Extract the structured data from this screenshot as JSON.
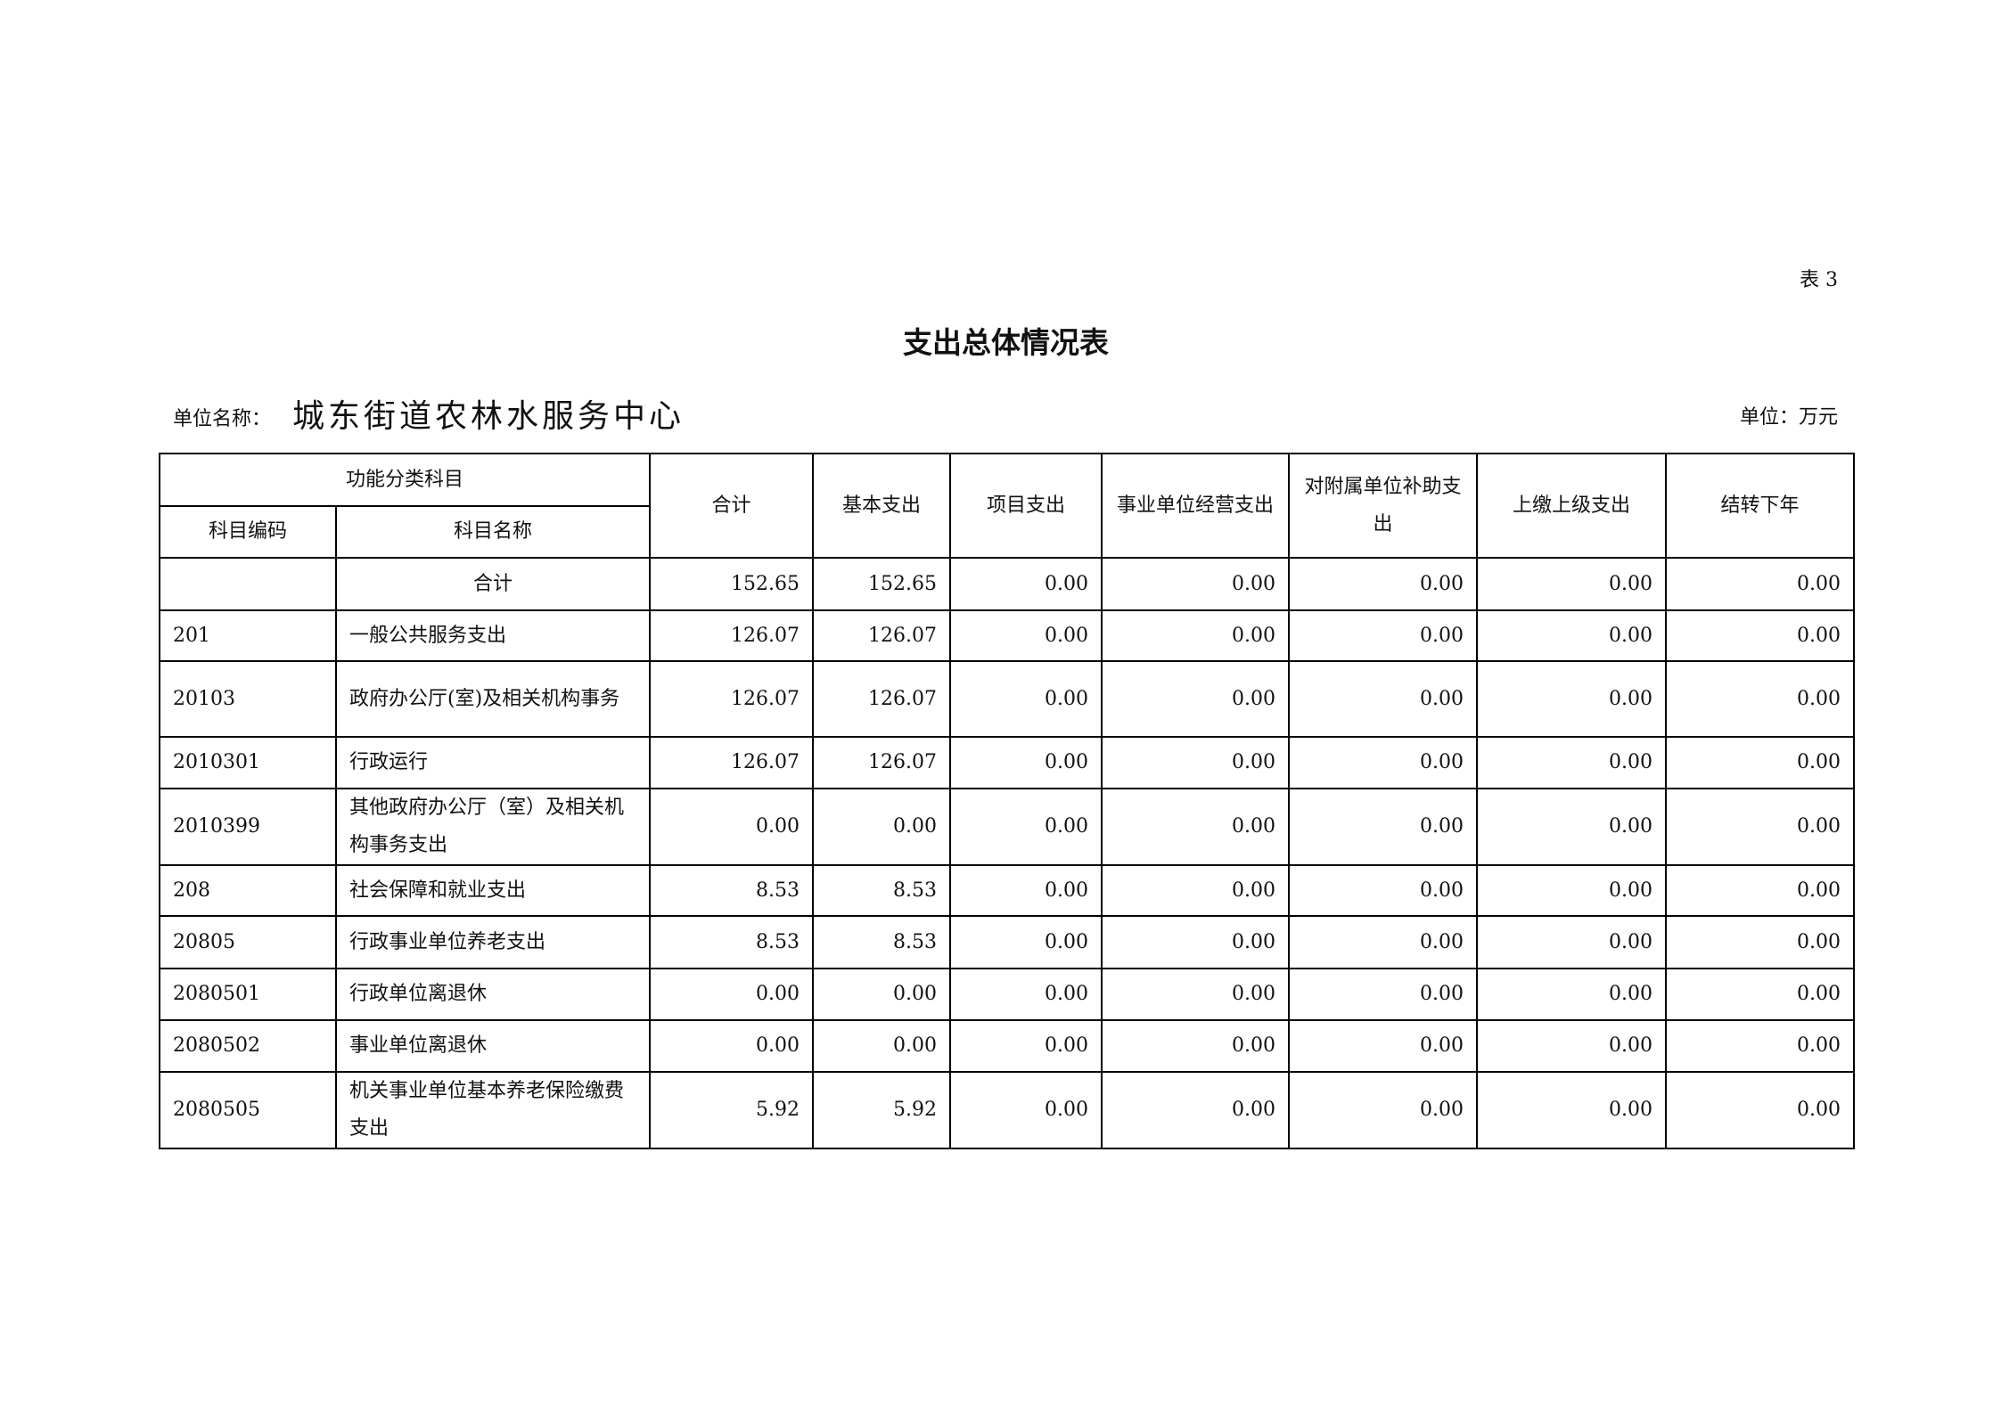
{
  "table_no": "表 3",
  "title": "支出总体情况表",
  "unit_label": "单位名称：",
  "unit_name": "城东街道农林水服务中心",
  "unit_currency": "单位：万元",
  "headers": {
    "group": "功能分类科目",
    "code": "科目编码",
    "name": "科目名称",
    "cols": [
      "合计",
      "基本支出",
      "项目支出",
      "事业单位经营支出",
      "对附属单位补助支出",
      "上缴上级支出",
      "结转下年"
    ]
  },
  "rows": [
    {
      "code": "",
      "name": "合计",
      "values": [
        "152.65",
        "152.65",
        "0.00",
        "0.00",
        "0.00",
        "0.00",
        "0.00"
      ]
    },
    {
      "code": "201",
      "name": "一般公共服务支出",
      "values": [
        "126.07",
        "126.07",
        "0.00",
        "0.00",
        "0.00",
        "0.00",
        "0.00"
      ]
    },
    {
      "code": "20103",
      "name": "政府办公厅(室)及相关机构事务",
      "values": [
        "126.07",
        "126.07",
        "0.00",
        "0.00",
        "0.00",
        "0.00",
        "0.00"
      ]
    },
    {
      "code": "2010301",
      "name": "行政运行",
      "values": [
        "126.07",
        "126.07",
        "0.00",
        "0.00",
        "0.00",
        "0.00",
        "0.00"
      ]
    },
    {
      "code": "2010399",
      "name": "其他政府办公厅（室）及相关机构事务支出",
      "values": [
        "0.00",
        "0.00",
        "0.00",
        "0.00",
        "0.00",
        "0.00",
        "0.00"
      ]
    },
    {
      "code": "208",
      "name": "社会保障和就业支出",
      "values": [
        "8.53",
        "8.53",
        "0.00",
        "0.00",
        "0.00",
        "0.00",
        "0.00"
      ]
    },
    {
      "code": "20805",
      "name": "行政事业单位养老支出",
      "values": [
        "8.53",
        "8.53",
        "0.00",
        "0.00",
        "0.00",
        "0.00",
        "0.00"
      ]
    },
    {
      "code": "2080501",
      "name": "行政单位离退休",
      "values": [
        "0.00",
        "0.00",
        "0.00",
        "0.00",
        "0.00",
        "0.00",
        "0.00"
      ]
    },
    {
      "code": "2080502",
      "name": "事业单位离退休",
      "values": [
        "0.00",
        "0.00",
        "0.00",
        "0.00",
        "0.00",
        "0.00",
        "0.00"
      ]
    },
    {
      "code": "2080505",
      "name": "机关事业单位基本养老保险缴费支出",
      "values": [
        "5.92",
        "5.92",
        "0.00",
        "0.00",
        "0.00",
        "0.00",
        "0.00"
      ]
    }
  ]
}
